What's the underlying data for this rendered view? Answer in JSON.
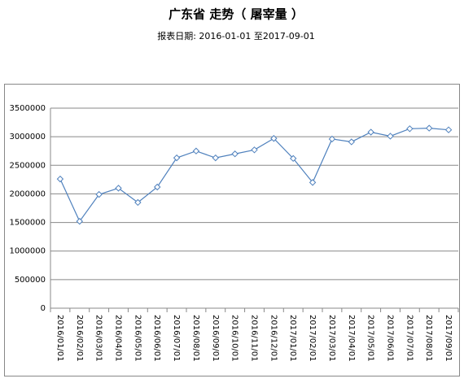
{
  "chart_data": {
    "type": "line",
    "title": "广东省 走势（ 屠宰量 ）",
    "subtitle": "报表日期: 2016-01-01 至2017-09-01",
    "categories": [
      "2016/01/01",
      "2016/02/01",
      "2016/03/01",
      "2016/04/01",
      "2016/05/01",
      "2016/06/01",
      "2016/07/01",
      "2016/08/01",
      "2016/09/01",
      "2016/10/01",
      "2016/11/01",
      "2016/12/01",
      "2017/01/01",
      "2017/02/01",
      "2017/03/01",
      "2017/04/01",
      "2017/05/01",
      "2017/06/01",
      "2017/07/01",
      "2017/08/01",
      "2017/09/01"
    ],
    "values": [
      2260000,
      1520000,
      1990000,
      2100000,
      1850000,
      2120000,
      2630000,
      2750000,
      2630000,
      2700000,
      2770000,
      2970000,
      2620000,
      2200000,
      2960000,
      2910000,
      3080000,
      3010000,
      3140000,
      3150000,
      3120000
    ],
    "color": "#4f81bd",
    "ylim": [
      0,
      3500000
    ],
    "yticks": [
      0,
      500000,
      1000000,
      1500000,
      2000000,
      2500000,
      3000000,
      3500000
    ],
    "grid": true
  }
}
